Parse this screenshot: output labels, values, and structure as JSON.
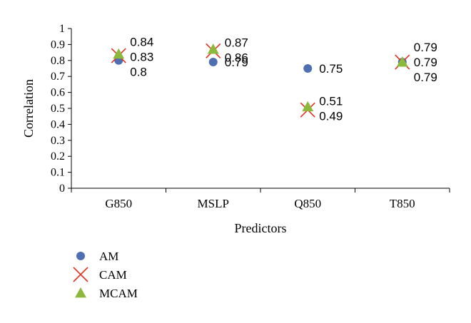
{
  "chart_data": {
    "type": "scatter",
    "xlabel": "Predictors",
    "ylabel": "Correlation",
    "ylim": [
      0,
      1
    ],
    "yticks": [
      "0",
      "0.1",
      "0.2",
      "0.3",
      "0.4",
      "0.5",
      "0.6",
      "0.7",
      "0.8",
      "0.9",
      "1"
    ],
    "categories": [
      "G850",
      "MSLP",
      "Q850",
      "T850"
    ],
    "series": [
      {
        "name": "AM",
        "values": [
          0.8,
          0.79,
          0.75,
          0.79
        ],
        "labels": [
          "0.8",
          "0.79",
          "0.75",
          "0.79"
        ],
        "color": "#4f6fb3",
        "marker": "circle"
      },
      {
        "name": "CAM",
        "values": [
          0.83,
          0.86,
          0.49,
          0.79
        ],
        "labels": [
          "0.83",
          "0.86",
          "0.49",
          "0.79"
        ],
        "color": "#e0301e",
        "marker": "x"
      },
      {
        "name": "MCAM",
        "values": [
          0.84,
          0.87,
          0.51,
          0.79
        ],
        "labels": [
          "0.84",
          "0.87",
          "0.51",
          "0.79"
        ],
        "color": "#8cb83c",
        "marker": "triangle"
      }
    ],
    "legend_position": "bottom-left",
    "grid": false
  }
}
